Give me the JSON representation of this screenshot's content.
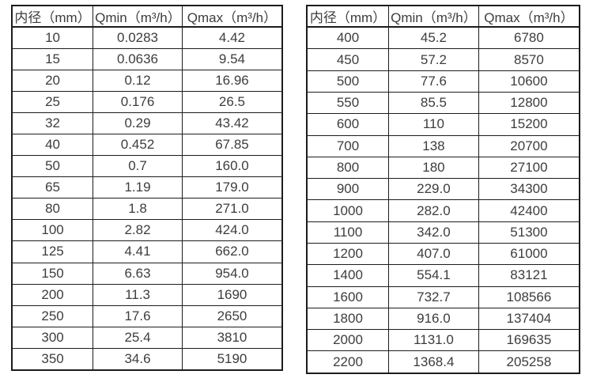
{
  "colors": {
    "background": "#ffffff",
    "border": "#1c1c1c",
    "text": "#3d3d3d"
  },
  "tables": [
    {
      "name": "small-diameters",
      "headers": [
        "内径（mm）",
        "Qmin（m³/h）",
        "Qmax（m³/h）"
      ],
      "rows": [
        [
          "10",
          "0.0283",
          "4.42"
        ],
        [
          "15",
          "0.0636",
          "9.54"
        ],
        [
          "20",
          "0.12",
          "16.96"
        ],
        [
          "25",
          "0.176",
          "26.5"
        ],
        [
          "32",
          "0.29",
          "43.42"
        ],
        [
          "40",
          "0.452",
          "67.85"
        ],
        [
          "50",
          "0.7",
          "160.0"
        ],
        [
          "65",
          "1.19",
          "179.0"
        ],
        [
          "80",
          "1.8",
          "271.0"
        ],
        [
          "100",
          "2.82",
          "424.0"
        ],
        [
          "125",
          "4.41",
          "662.0"
        ],
        [
          "150",
          "6.63",
          "954.0"
        ],
        [
          "200",
          "11.3",
          "1690"
        ],
        [
          "250",
          "17.6",
          "2650"
        ],
        [
          "300",
          "25.4",
          "3810"
        ],
        [
          "350",
          "34.6",
          "5190"
        ]
      ]
    },
    {
      "name": "large-diameters",
      "headers": [
        "内径（mm）",
        "Qmin（m³/h）",
        "Qmax（m³/h）"
      ],
      "rows": [
        [
          "400",
          "45.2",
          "6780"
        ],
        [
          "450",
          "57.2",
          "8570"
        ],
        [
          "500",
          "77.6",
          "10600"
        ],
        [
          "550",
          "85.5",
          "12800"
        ],
        [
          "600",
          "110",
          "15200"
        ],
        [
          "700",
          "138",
          "20700"
        ],
        [
          "800",
          "180",
          "27100"
        ],
        [
          "900",
          "229.0",
          "34300"
        ],
        [
          "1000",
          "282.0",
          "42400"
        ],
        [
          "1100",
          "342.0",
          "51300"
        ],
        [
          "1200",
          "407.0",
          "61000"
        ],
        [
          "1400",
          "554.1",
          "83121"
        ],
        [
          "1600",
          "732.7",
          "108566"
        ],
        [
          "1800",
          "916.0",
          "137404"
        ],
        [
          "2000",
          "1131.0",
          "169635"
        ],
        [
          "2200",
          "1368.4",
          "205258"
        ]
      ]
    }
  ]
}
